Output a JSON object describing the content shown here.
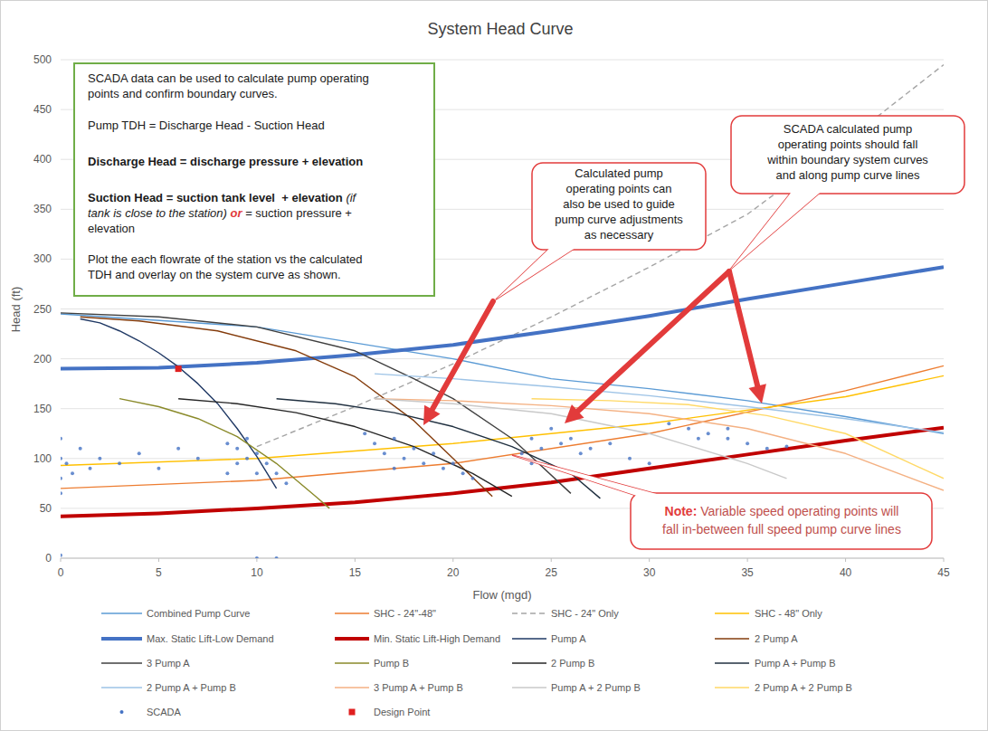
{
  "chart_data": {
    "type": "line",
    "title": "System Head Curve",
    "x_label": "Flow (mgd)",
    "y_label": "Head (ft)",
    "xlim": [
      0,
      45
    ],
    "ylim": [
      0,
      500
    ],
    "xticks": [
      0,
      5,
      10,
      15,
      20,
      25,
      30,
      35,
      40,
      45
    ],
    "yticks": [
      0,
      50,
      100,
      150,
      200,
      250,
      300,
      350,
      400,
      450,
      500
    ],
    "grid": true,
    "legend": "bottom",
    "series": [
      {
        "name": "Combined Pump Curve",
        "color": "#5b9bd5",
        "line_style": "solid",
        "x": [
          0,
          10,
          20,
          25,
          30,
          35,
          40,
          45
        ],
        "values": [
          245,
          232,
          200,
          180,
          170,
          158,
          142,
          125
        ]
      },
      {
        "name": "SHC - 24\"-48\"",
        "color": "#ed7d31",
        "line_style": "solid",
        "x": [
          0,
          10,
          20,
          30,
          40,
          45
        ],
        "values": [
          70,
          78,
          95,
          125,
          168,
          193
        ]
      },
      {
        "name": "SHC - 24\" Only",
        "color": "#a5a5a5",
        "line_style": "dashed",
        "x": [
          10,
          15,
          20,
          25,
          30,
          35,
          40,
          45
        ],
        "values": [
          112,
          152,
          195,
          242,
          292,
          345,
          418,
          495
        ]
      },
      {
        "name": "SHC - 48\" Only",
        "color": "#ffc000",
        "line_style": "solid",
        "x": [
          0,
          10,
          20,
          30,
          40,
          45
        ],
        "values": [
          93,
          100,
          115,
          135,
          162,
          183
        ]
      },
      {
        "name": "Max. Static Lift-Low Demand",
        "color": "#4472c4",
        "line_style": "thick",
        "x": [
          0,
          5,
          10,
          15,
          20,
          25,
          30,
          35,
          40,
          45
        ],
        "values": [
          190,
          191,
          196,
          204,
          214,
          228,
          243,
          260,
          276,
          292
        ]
      },
      {
        "name": "Min. Static Lift-High Demand",
        "color": "#c00000",
        "line_style": "thick",
        "x": [
          0,
          5,
          10,
          15,
          20,
          25,
          30,
          35,
          40,
          45
        ],
        "values": [
          42,
          45,
          50,
          56,
          65,
          76,
          90,
          104,
          118,
          131
        ]
      },
      {
        "name": "Pump A",
        "color": "#1f3864",
        "line_style": "solid",
        "x": [
          1,
          2,
          3,
          4,
          5,
          6,
          7,
          8,
          9,
          10,
          11
        ],
        "values": [
          240,
          236,
          228,
          218,
          206,
          192,
          175,
          155,
          130,
          102,
          70
        ]
      },
      {
        "name": "2 Pump A",
        "color": "#843c0c",
        "line_style": "solid",
        "x": [
          1,
          4,
          8,
          12,
          15,
          18,
          20,
          22
        ],
        "values": [
          242,
          238,
          228,
          208,
          182,
          138,
          100,
          62
        ]
      },
      {
        "name": "3 Pump A",
        "color": "#404040",
        "line_style": "solid",
        "x": [
          0,
          5,
          10,
          15,
          18,
          20,
          23,
          26
        ],
        "values": [
          246,
          242,
          232,
          208,
          180,
          160,
          120,
          65
        ]
      },
      {
        "name": "Pump B",
        "color": "#8a8a2a",
        "line_style": "solid",
        "x": [
          3,
          5,
          7,
          9,
          11,
          13,
          13.7
        ],
        "values": [
          160,
          152,
          140,
          122,
          95,
          62,
          50
        ]
      },
      {
        "name": "2 Pump B",
        "color": "#262626",
        "line_style": "solid",
        "x": [
          6,
          9,
          12,
          15,
          18,
          21,
          23
        ],
        "values": [
          160,
          155,
          146,
          132,
          112,
          85,
          62
        ]
      },
      {
        "name": "Pump A + Pump B",
        "color": "#203040",
        "line_style": "solid",
        "x": [
          11,
          14,
          17,
          20,
          23,
          26,
          27.5
        ],
        "values": [
          160,
          155,
          146,
          132,
          112,
          85,
          60
        ]
      },
      {
        "name": "2 Pump A + Pump B",
        "color": "#9dc3e6",
        "line_style": "solid",
        "x": [
          16,
          20,
          25,
          30,
          35,
          40,
          45
        ],
        "values": [
          185,
          180,
          172,
          163,
          152,
          140,
          126
        ]
      },
      {
        "name": "3 Pump A + Pump B",
        "color": "#f4b183",
        "line_style": "solid",
        "x": [
          16,
          20,
          25,
          30,
          35,
          40,
          45
        ],
        "values": [
          160,
          158,
          153,
          145,
          130,
          105,
          68
        ]
      },
      {
        "name": "Pump A + 2 Pump B",
        "color": "#c9c9c9",
        "line_style": "solid",
        "x": [
          16,
          20,
          25,
          30,
          35,
          37
        ],
        "values": [
          160,
          155,
          145,
          125,
          95,
          80
        ]
      },
      {
        "name": "2 Pump A + 2 Pump B",
        "color": "#ffd966",
        "line_style": "solid",
        "x": [
          24,
          28,
          32,
          36,
          40,
          45
        ],
        "values": [
          160,
          158,
          154,
          143,
          125,
          80
        ]
      },
      {
        "name": "SCADA",
        "type": "scatter",
        "marker": "circle",
        "color": "#4472c4",
        "x": [
          0,
          0,
          0,
          0,
          0.3,
          0.6,
          1,
          1.5,
          2,
          3,
          4,
          5,
          6,
          7,
          8.5,
          9,
          9,
          9.5,
          9.5,
          10,
          10,
          10.5,
          11,
          11.5,
          8.5,
          15.5,
          16,
          16.5,
          17,
          17.5,
          18,
          18.5,
          19,
          19.5,
          20,
          20.5,
          21,
          17,
          23.5,
          24,
          24.5,
          25,
          25.5,
          26,
          27,
          28,
          29,
          30,
          26.5,
          24,
          31,
          32,
          33,
          34,
          35,
          36,
          37,
          32.5,
          34,
          0,
          10,
          11
        ],
        "values": [
          120,
          100,
          80,
          65,
          95,
          85,
          110,
          90,
          100,
          95,
          105,
          90,
          110,
          100,
          115,
          110,
          95,
          120,
          100,
          105,
          85,
          95,
          85,
          75,
          85,
          125,
          115,
          105,
          120,
          100,
          110,
          95,
          105,
          90,
          95,
          85,
          80,
          90,
          105,
          120,
          110,
          130,
          115,
          120,
          110,
          115,
          100,
          95,
          105,
          95,
          135,
          130,
          125,
          120,
          115,
          110,
          112,
          120,
          130,
          3,
          0,
          0
        ]
      },
      {
        "name": "Design Point",
        "type": "scatter",
        "marker": "square",
        "color": "#e02020",
        "x": [
          6
        ],
        "values": [
          190
        ]
      }
    ],
    "annotations": {
      "info_box": [
        [
          [
            "SCADA data can be used to calculate pump operating"
          ],
          [
            "points and confirm boundary curves."
          ]
        ],
        [
          [
            "Pump TDH = Discharge Head - Suction Head"
          ]
        ],
        [
          [
            "Discharge Head = discharge pressure + elevation"
          ]
        ],
        [
          [
            "Suction Head = suction tank level  + elevation",
            " (if"
          ],
          [
            "tank is close to the station)",
            " or",
            " = suction pressure +"
          ],
          [
            "elevation"
          ]
        ],
        [
          [
            "Plot the each flowrate of the station vs the calculated"
          ],
          [
            "TDH and overlay on the system curve as shown."
          ]
        ]
      ],
      "callouts": [
        [
          "Calculated pump",
          "operating points can",
          "also be used to guide",
          "pump curve adjustments",
          "as necessary"
        ],
        [
          "SCADA calculated pump",
          "operating points should fall",
          "within boundary system curves",
          "and along pump curve lines"
        ]
      ],
      "note": [
        [
          "Note:",
          " Variable speed operating points will"
        ],
        [
          "fall in-between full speed pump curve lines"
        ]
      ]
    }
  }
}
